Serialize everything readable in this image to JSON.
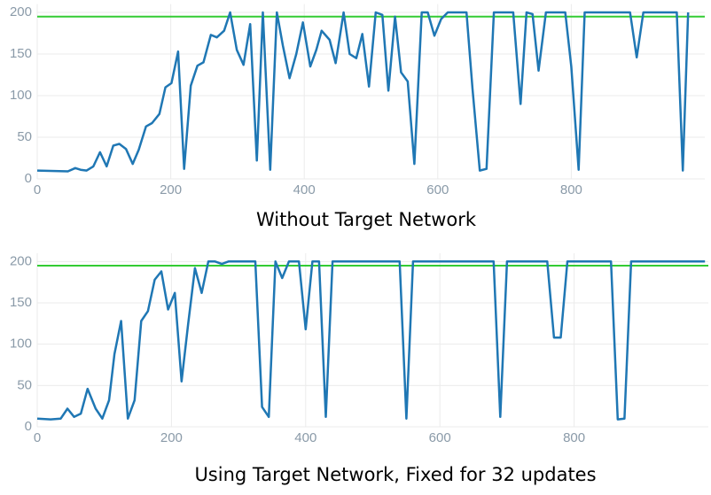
{
  "chart_data": [
    {
      "type": "line",
      "title": "Without Target Network",
      "x": [
        0,
        46,
        57,
        65,
        74,
        84,
        94,
        104,
        114,
        123,
        133,
        143,
        152,
        163,
        172,
        183,
        192,
        201,
        211,
        220,
        230,
        240,
        249,
        260,
        269,
        280,
        289,
        299,
        309,
        319,
        329,
        338,
        349,
        359,
        368,
        378,
        388,
        398,
        409,
        418,
        426,
        438,
        447,
        459,
        468,
        478,
        487,
        497,
        507,
        517,
        526,
        536,
        545,
        555,
        565,
        576,
        585,
        595,
        605,
        615,
        643,
        652,
        663,
        673,
        684,
        713,
        724,
        733,
        742,
        751,
        762,
        791,
        800,
        811,
        820,
        888,
        898,
        908,
        958,
        967,
        975
      ],
      "values": [
        10,
        9,
        13,
        11,
        10,
        15,
        32,
        15,
        40,
        42,
        36,
        18,
        35,
        63,
        67,
        78,
        110,
        115,
        153,
        12,
        112,
        136,
        140,
        173,
        170,
        178,
        200,
        155,
        137,
        186,
        22,
        200,
        11,
        200,
        160,
        121,
        150,
        188,
        135,
        155,
        178,
        167,
        139,
        200,
        150,
        145,
        174,
        111,
        200,
        197,
        106,
        195,
        128,
        117,
        18,
        200,
        200,
        172,
        192,
        200,
        200,
        108,
        10,
        12,
        200,
        200,
        90,
        200,
        198,
        130,
        200,
        200,
        135,
        11,
        200,
        200,
        146,
        200,
        200,
        10,
        200
      ],
      "color": "#1f77b4",
      "threshold": 195,
      "threshold_color": "#33cc33",
      "xlim": [
        0,
        1000
      ],
      "ylim": [
        0,
        210
      ],
      "xticks": [
        0,
        200,
        400,
        600,
        800
      ],
      "yticks": [
        0,
        50,
        100,
        150,
        200
      ],
      "grid": true
    },
    {
      "type": "line",
      "title": "Using Target Network, Fixed for 32 updates",
      "x": [
        0,
        20,
        35,
        45,
        55,
        65,
        75,
        87,
        97,
        107,
        115,
        125,
        135,
        145,
        155,
        165,
        175,
        185,
        195,
        205,
        215,
        225,
        235,
        245,
        255,
        265,
        275,
        285,
        325,
        335,
        345,
        355,
        365,
        375,
        390,
        400,
        410,
        420,
        430,
        440,
        540,
        550,
        560,
        680,
        690,
        700,
        760,
        770,
        780,
        790,
        855,
        865,
        875,
        885,
        995
      ],
      "values": [
        10,
        9,
        10,
        22,
        12,
        16,
        46,
        22,
        10,
        32,
        88,
        128,
        10,
        32,
        128,
        140,
        178,
        188,
        142,
        162,
        55,
        125,
        192,
        162,
        200,
        200,
        197,
        200,
        200,
        24,
        12,
        200,
        180,
        200,
        200,
        118,
        200,
        200,
        12,
        200,
        200,
        10,
        200,
        200,
        12,
        200,
        200,
        108,
        108,
        200,
        200,
        9,
        10,
        200,
        200
      ],
      "color": "#1f77b4",
      "threshold": 195,
      "threshold_color": "#33cc33",
      "xlim": [
        0,
        1000
      ],
      "ylim": [
        0,
        210
      ],
      "xticks": [
        0,
        200,
        400,
        600,
        800
      ],
      "yticks": [
        0,
        50,
        100,
        150,
        200
      ],
      "grid": true
    }
  ]
}
